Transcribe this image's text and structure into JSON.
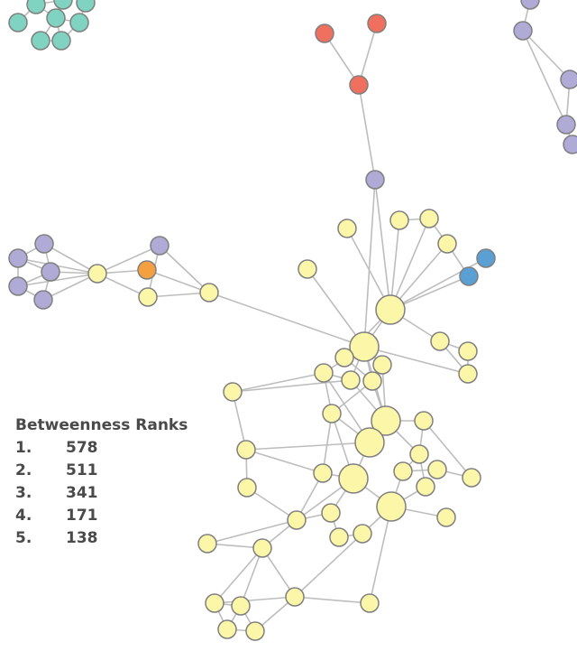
{
  "legend": {
    "title": "Betweenness Ranks",
    "ranks": [
      {
        "rank": "1.",
        "value": 578
      },
      {
        "rank": "2.",
        "value": 511
      },
      {
        "rank": "3.",
        "value": 341
      },
      {
        "rank": "4.",
        "value": 171
      },
      {
        "rank": "5.",
        "value": 138
      }
    ]
  }
}
